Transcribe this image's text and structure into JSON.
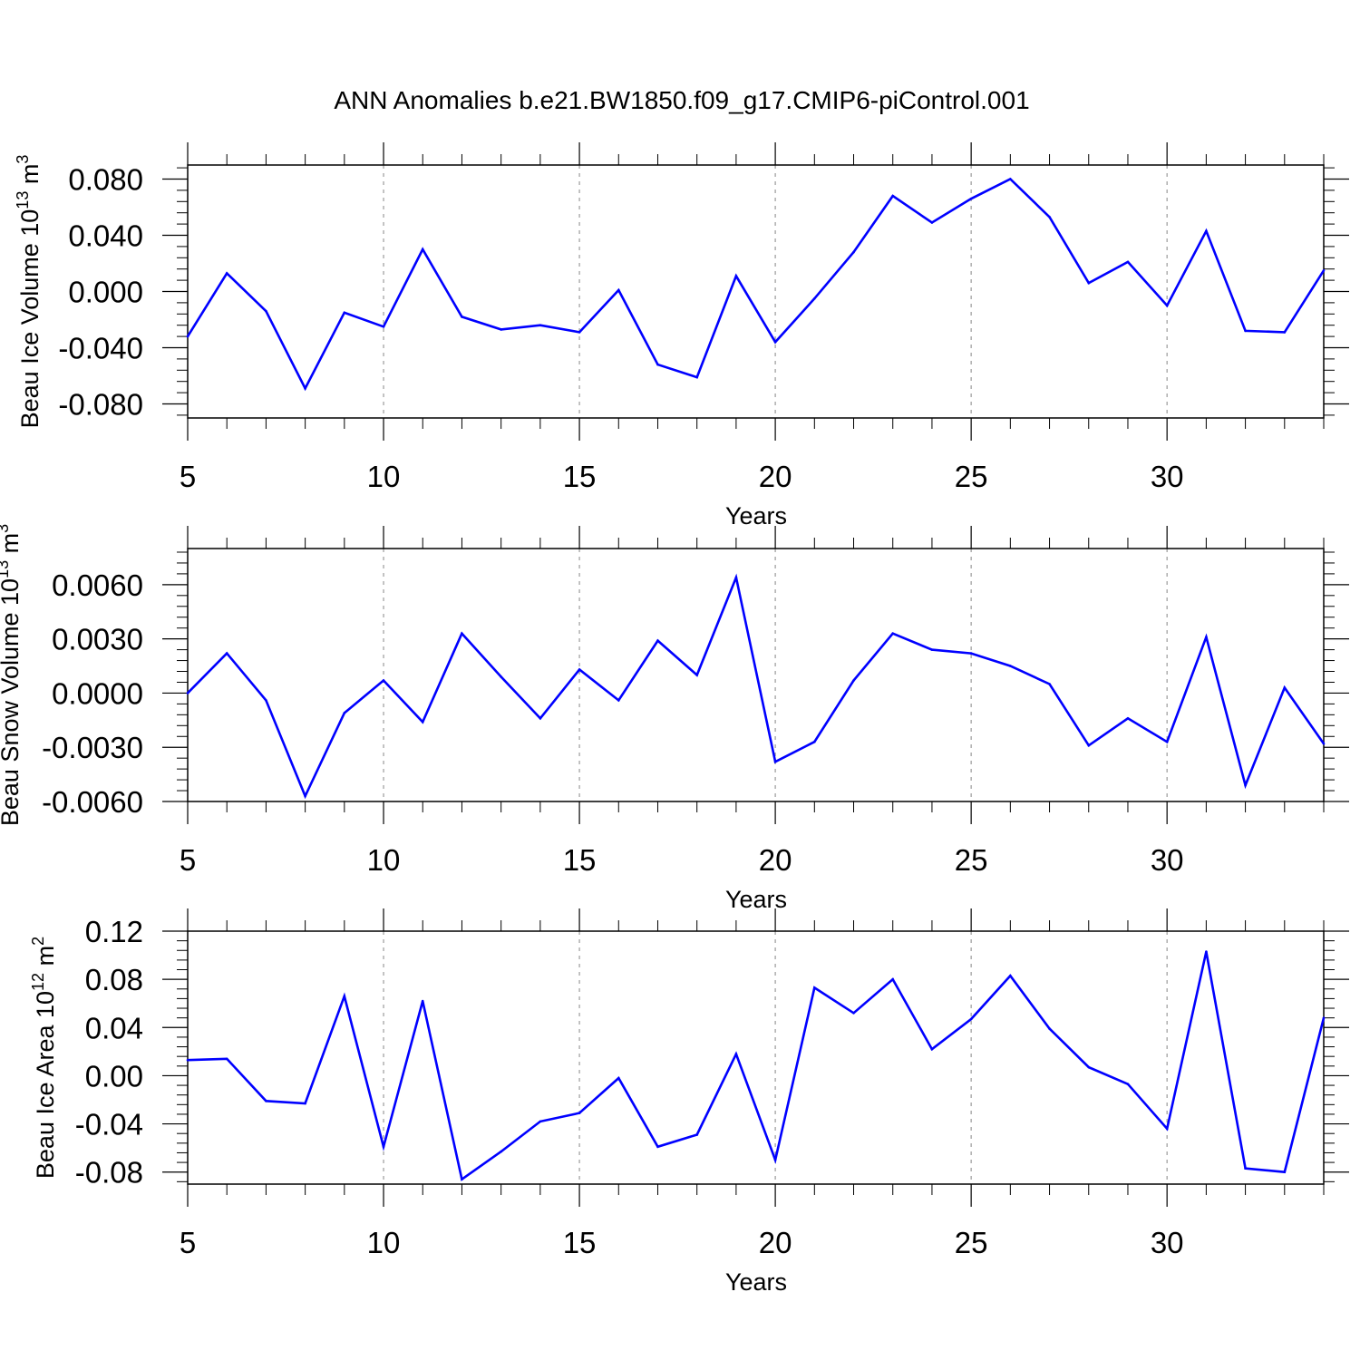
{
  "title": "ANN Anomalies b.e21.BW1850.f09_g17.CMIP6-piControl.001",
  "colors": {
    "line": "#0000ff",
    "axis": "#000000",
    "grid": "#9a9a9a"
  },
  "chart_data": [
    {
      "type": "line",
      "title": "",
      "xlabel": "Years",
      "ylabel": {
        "prefix": "Beau Ice Volume 10",
        "exponent": "13",
        "unit": " m",
        "unit_exponent": "3"
      },
      "xlim": [
        5,
        34
      ],
      "ylim": [
        -0.09,
        0.09
      ],
      "x_ticks": [
        5,
        10,
        15,
        20,
        25,
        30
      ],
      "x_tick_labels": [
        "5",
        "10",
        "15",
        "20",
        "25",
        "30"
      ],
      "y_ticks": [
        -0.08,
        -0.04,
        0.0,
        0.04,
        0.08
      ],
      "y_tick_labels": [
        "-0.080",
        "-0.040",
        "0.000",
        "0.040",
        "0.080"
      ],
      "grid": "vertical dashed at major x ticks",
      "series": [
        {
          "x": [
            5,
            6,
            7,
            8,
            9,
            10,
            11,
            12,
            13,
            14,
            15,
            16,
            17,
            18,
            19,
            20,
            21,
            22,
            23,
            24,
            25,
            26,
            27,
            28,
            29,
            30,
            31,
            32,
            33,
            34
          ],
          "y": [
            -0.032,
            0.013,
            -0.014,
            -0.069,
            -0.015,
            -0.025,
            0.03,
            -0.018,
            -0.027,
            -0.024,
            -0.029,
            0.001,
            -0.052,
            -0.061,
            0.011,
            -0.036,
            -0.005,
            0.028,
            0.068,
            0.049,
            0.066,
            0.08,
            0.053,
            0.006,
            0.021,
            -0.01,
            0.043,
            -0.028,
            -0.029,
            0.015
          ]
        }
      ]
    },
    {
      "type": "line",
      "title": "",
      "xlabel": "Years",
      "ylabel": {
        "prefix": "Beau Snow Volume 10",
        "exponent": "13",
        "unit": " m",
        "unit_exponent": "3"
      },
      "xlim": [
        5,
        34
      ],
      "ylim": [
        -0.006,
        0.008
      ],
      "x_ticks": [
        5,
        10,
        15,
        20,
        25,
        30
      ],
      "x_tick_labels": [
        "5",
        "10",
        "15",
        "20",
        "25",
        "30"
      ],
      "y_ticks": [
        -0.006,
        -0.003,
        0.0,
        0.003,
        0.006
      ],
      "y_tick_labels": [
        "-0.0060",
        "-0.0030",
        "0.0000",
        "0.0030",
        "0.0060"
      ],
      "grid": "vertical dashed at major x ticks",
      "series": [
        {
          "x": [
            5,
            6,
            7,
            8,
            9,
            10,
            11,
            12,
            13,
            14,
            15,
            16,
            17,
            18,
            19,
            20,
            21,
            22,
            23,
            24,
            25,
            26,
            27,
            28,
            29,
            30,
            31,
            32,
            33,
            34
          ],
          "y": [
            0.0,
            0.0022,
            -0.0004,
            -0.0057,
            -0.0011,
            0.0007,
            -0.0016,
            0.0033,
            0.0009,
            -0.0014,
            0.0013,
            -0.0004,
            0.0029,
            0.001,
            0.0064,
            -0.0038,
            -0.0027,
            0.0007,
            0.0033,
            0.0024,
            0.0022,
            0.0015,
            0.0005,
            -0.0029,
            -0.0014,
            -0.0027,
            0.0031,
            -0.0051,
            0.0003,
            -0.0028
          ]
        }
      ]
    },
    {
      "type": "line",
      "title": "",
      "xlabel": "Years",
      "ylabel": {
        "prefix": "Beau Ice Area 10",
        "exponent": "12",
        "unit": " m",
        "unit_exponent": "2"
      },
      "xlim": [
        5,
        34
      ],
      "ylim": [
        -0.09,
        0.12
      ],
      "x_ticks": [
        5,
        10,
        15,
        20,
        25,
        30
      ],
      "x_tick_labels": [
        "5",
        "10",
        "15",
        "20",
        "25",
        "30"
      ],
      "y_ticks": [
        -0.08,
        -0.04,
        0.0,
        0.04,
        0.08,
        0.12
      ],
      "y_tick_labels": [
        "-0.08",
        "-0.04",
        "0.00",
        "0.04",
        "0.08",
        "0.12"
      ],
      "grid": "vertical dashed at major x ticks",
      "series": [
        {
          "x": [
            5,
            6,
            7,
            8,
            9,
            10,
            11,
            12,
            13,
            14,
            15,
            16,
            17,
            18,
            19,
            20,
            21,
            22,
            23,
            24,
            25,
            26,
            27,
            28,
            29,
            30,
            31,
            32,
            33,
            34
          ],
          "y": [
            0.013,
            0.014,
            -0.021,
            -0.023,
            0.066,
            -0.059,
            0.062,
            -0.086,
            -0.063,
            -0.038,
            -0.031,
            -0.002,
            -0.059,
            -0.049,
            0.018,
            -0.07,
            0.073,
            0.052,
            0.08,
            0.022,
            0.047,
            0.083,
            0.039,
            0.007,
            -0.007,
            -0.044,
            0.103,
            -0.077,
            -0.08,
            0.048
          ]
        }
      ]
    }
  ]
}
